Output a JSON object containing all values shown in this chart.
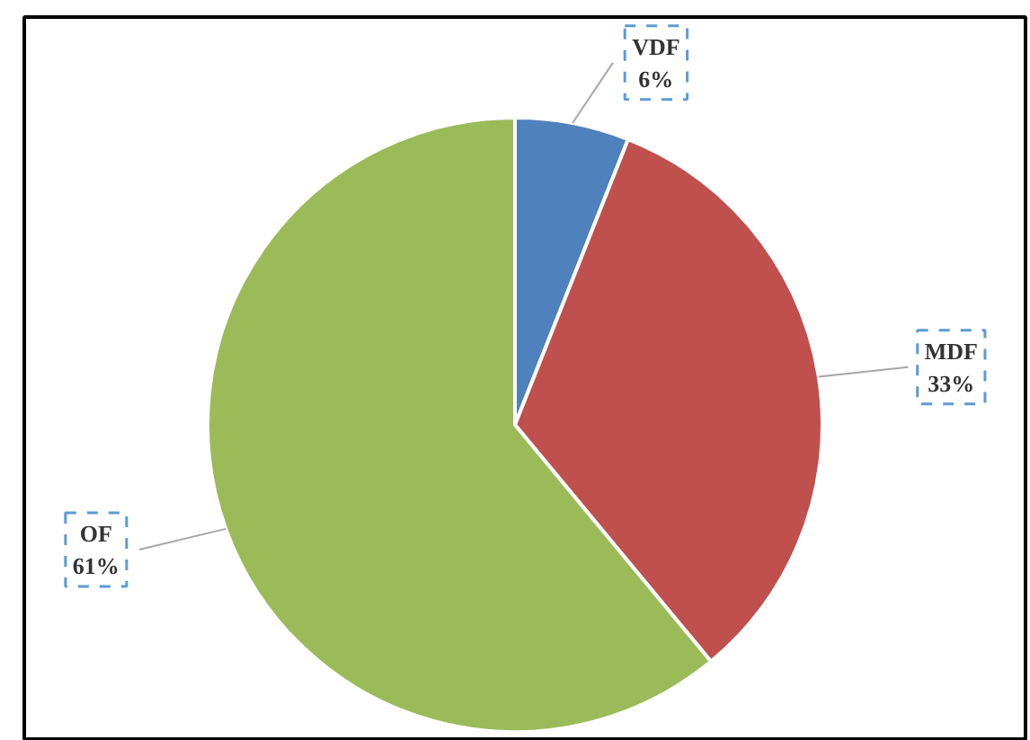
{
  "chart_data": {
    "type": "pie",
    "categories": [
      "VDF",
      "MDF",
      "OF"
    ],
    "values": [
      6,
      33,
      61
    ],
    "colors": [
      "#4f81bd",
      "#c0504d",
      "#9bbb59"
    ],
    "value_labels": [
      "6%",
      "33%",
      "61%"
    ]
  }
}
